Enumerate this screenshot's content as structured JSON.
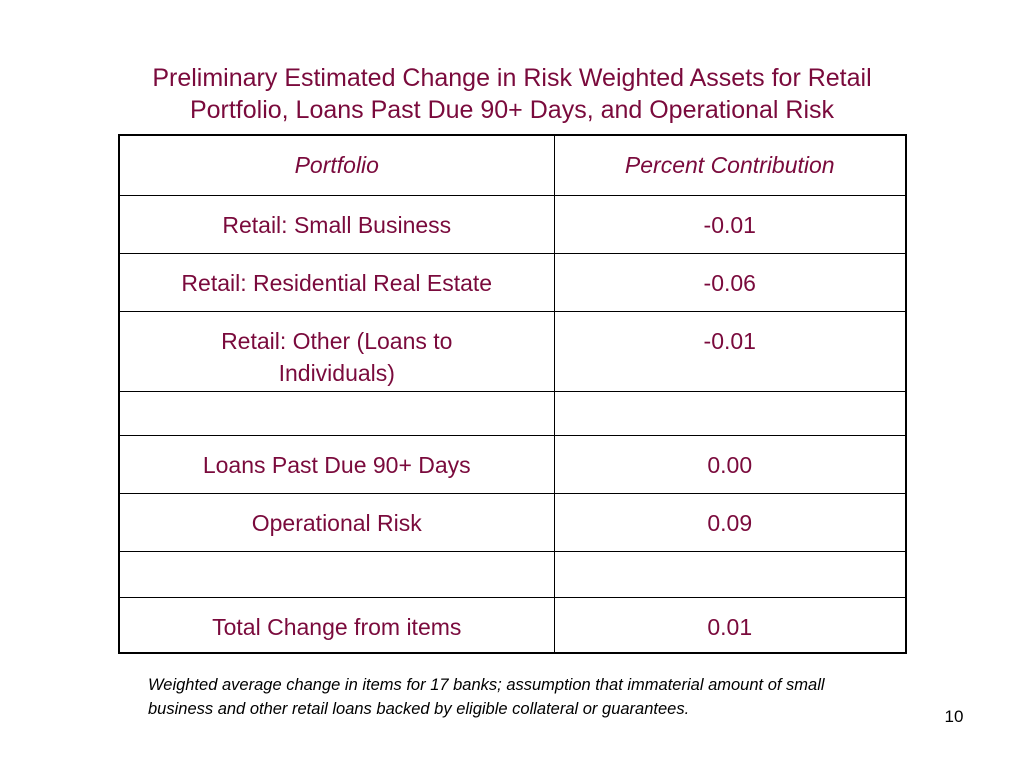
{
  "title": {
    "line1": "Preliminary Estimated Change in Risk Weighted Assets for Retail",
    "line2": "Portfolio,  Loans Past Due 90+ Days, and Operational Risk"
  },
  "table": {
    "headers": [
      "Portfolio",
      "Percent Contribution"
    ],
    "rows": [
      {
        "portfolio": "Retail: Small Business",
        "percent": "-0.01"
      },
      {
        "portfolio": "Retail: Residential Real Estate",
        "percent": "-0.06"
      },
      {
        "portfolio": "Retail: Other (Loans to Individuals)",
        "percent": "-0.01"
      },
      {
        "portfolio": "",
        "percent": ""
      },
      {
        "portfolio": "Loans Past Due 90+ Days",
        "percent": "0.00"
      },
      {
        "portfolio": "Operational Risk",
        "percent": "0.09"
      },
      {
        "portfolio": "",
        "percent": ""
      },
      {
        "portfolio": "Total Change from items",
        "percent": "0.01"
      }
    ]
  },
  "footnote": "Weighted average change in items for 17 banks; assumption that immaterial amount of small business and other retail loans backed by eligible collateral or guarantees.",
  "page_number": "10",
  "colors": {
    "text_accent": "#7a0a3c",
    "border": "#000000"
  }
}
